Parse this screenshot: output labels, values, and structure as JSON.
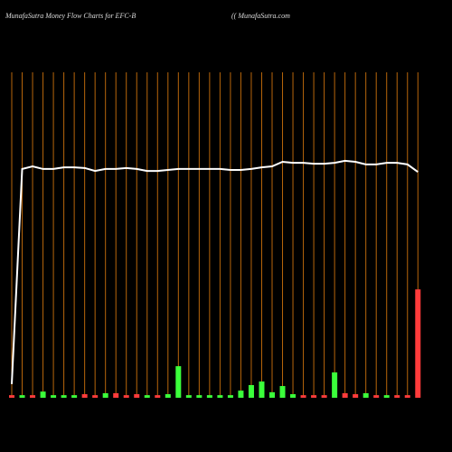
{
  "chart_data": {
    "type": "bar",
    "title": "MunafaSutra  Money Flow  Charts for EFC-B",
    "subtitle": "(( MunafaSutra.com",
    "categories": [
      null,
      null,
      null,
      null,
      null,
      null,
      null,
      null,
      null,
      null,
      null,
      null,
      null,
      null,
      null,
      null,
      null,
      null,
      null,
      null,
      null,
      null,
      null,
      null,
      null,
      null,
      null,
      null,
      null,
      null,
      null,
      null,
      null,
      null,
      null,
      null,
      null,
      null,
      null,
      null
    ],
    "ylim": [
      0,
      100
    ],
    "series": [
      {
        "type": "bar",
        "values": [
          0.8,
          0.8,
          0.8,
          1.9,
          0.8,
          0.8,
          0.8,
          1.1,
          0.8,
          1.4,
          1.4,
          0.8,
          1.1,
          0.8,
          0.8,
          1.1,
          9.7,
          0.8,
          0.8,
          0.8,
          0.8,
          0.8,
          2.2,
          3.9,
          5.0,
          1.7,
          3.6,
          1.1,
          0.8,
          0.8,
          0.8,
          7.8,
          1.4,
          1.1,
          1.4,
          0.8,
          0.8,
          0.8,
          0.8,
          33.3
        ],
        "colors": [
          "#ff3b3b",
          "#3bff3b",
          "#ff3b3b",
          "#3bff3b",
          "#3bff3b",
          "#3bff3b",
          "#3bff3b",
          "#ff3b3b",
          "#ff3b3b",
          "#3bff3b",
          "#ff3b3b",
          "#ff3b3b",
          "#ff3b3b",
          "#3bff3b",
          "#ff3b3b",
          "#3bff3b",
          "#3bff3b",
          "#3bff3b",
          "#3bff3b",
          "#3bff3b",
          "#3bff3b",
          "#3bff3b",
          "#3bff3b",
          "#3bff3b",
          "#3bff3b",
          "#3bff3b",
          "#3bff3b",
          "#3bff3b",
          "#ff3b3b",
          "#ff3b3b",
          "#ff3b3b",
          "#3bff3b",
          "#ff3b3b",
          "#ff3b3b",
          "#3bff3b",
          "#ff3b3b",
          "#3bff3b",
          "#ff3b3b",
          "#ff3b3b",
          "#ff3b3b"
        ]
      },
      {
        "type": "line",
        "color": "#ffffff",
        "values": [
          4.2,
          70.3,
          71.1,
          70.3,
          70.3,
          70.8,
          70.8,
          70.6,
          69.7,
          70.3,
          70.3,
          70.6,
          70.3,
          69.7,
          69.7,
          70.0,
          70.3,
          70.3,
          70.3,
          70.3,
          70.3,
          70.0,
          70.0,
          70.3,
          70.8,
          71.1,
          72.5,
          72.2,
          72.2,
          71.9,
          71.9,
          72.2,
          72.8,
          72.5,
          71.7,
          71.7,
          72.2,
          72.2,
          71.7,
          69.4
        ]
      }
    ]
  }
}
